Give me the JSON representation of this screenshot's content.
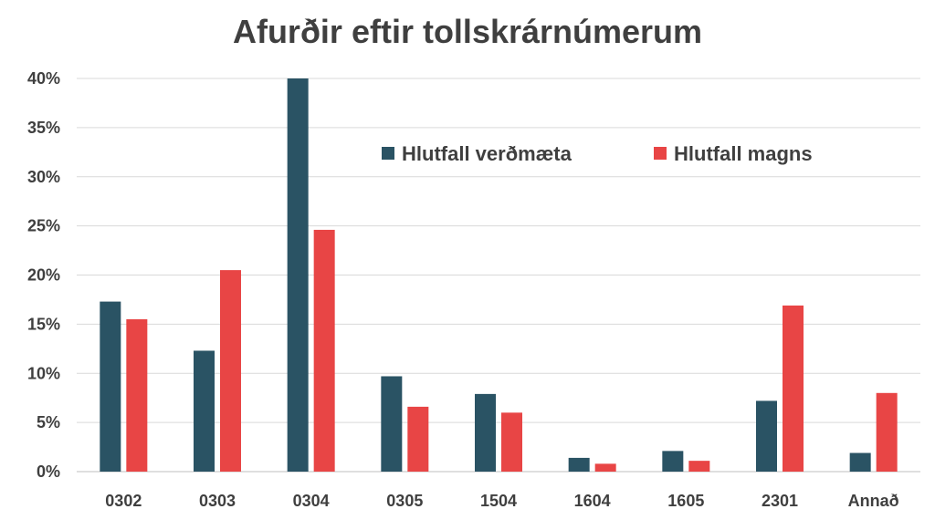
{
  "chart_data": {
    "type": "bar",
    "title": "Afurðir eftir tollskrárnúmerum",
    "xlabel": "",
    "ylabel": "",
    "categories": [
      "0302",
      "0303",
      "0304",
      "0305",
      "1504",
      "1604",
      "1605",
      "2301",
      "Annað"
    ],
    "series": [
      {
        "name": "Hlutfall verðmæta",
        "color": "#2a5364",
        "values": [
          17.3,
          12.3,
          40.0,
          9.7,
          7.9,
          1.4,
          2.1,
          7.2,
          1.9
        ]
      },
      {
        "name": "Hlutfall magns",
        "color": "#e84545",
        "values": [
          15.5,
          20.5,
          24.6,
          6.6,
          6.0,
          0.8,
          1.1,
          16.9,
          8.0
        ]
      }
    ],
    "ylim": [
      0,
      40
    ],
    "yticks": [
      "0%",
      "5%",
      "10%",
      "15%",
      "20%",
      "25%",
      "30%",
      "35%",
      "40%"
    ],
    "ytick_values": [
      0,
      5,
      10,
      15,
      20,
      25,
      30,
      35,
      40
    ],
    "grid": true,
    "legend_position": "top-right"
  }
}
